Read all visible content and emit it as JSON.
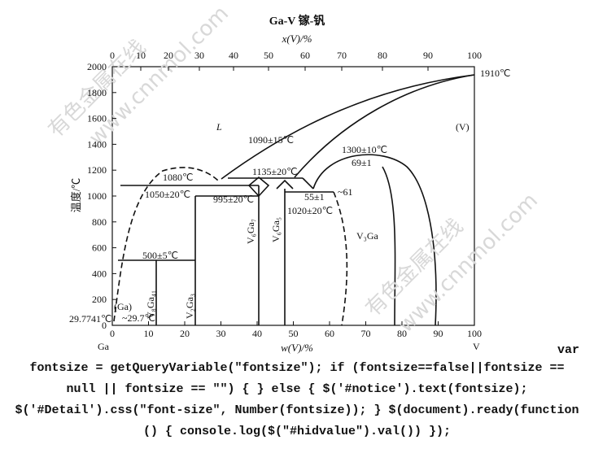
{
  "figure": {
    "title": "Ga-V  镓-钒",
    "top_axis": {
      "label": "x(V)/%",
      "ticks": [
        0,
        10,
        20,
        30,
        40,
        50,
        60,
        70,
        80,
        90,
        100
      ]
    },
    "left_axis": {
      "label": "温度/℃",
      "ticks": [
        0,
        200,
        400,
        600,
        800,
        1000,
        1200,
        1400,
        1600,
        1800,
        2000
      ]
    },
    "bottom_axis": {
      "label": "w(V)/%",
      "ticks": [
        0,
        10,
        20,
        30,
        40,
        50,
        60,
        70,
        80,
        90,
        100
      ]
    },
    "annotations": [
      "L",
      "(V)",
      "1910℃",
      "1090±15℃",
      "1300±10℃",
      "69±1",
      "1135±20℃",
      "1080℃",
      "1050±20℃",
      "995±20℃",
      "55±1",
      "~61",
      "1020±20℃",
      "V₆Ga₇",
      "V₆Ga₅",
      "V₃Ga",
      "500±5℃",
      "V₈Ga₄₁",
      "V₂Ga₃",
      "(Ga)",
      "~29.7℃",
      "29.7741℃",
      "Ga",
      "V"
    ],
    "watermarks": [
      "有色金属在线",
      "www.cnnmol.com",
      "有色金属在线",
      "www.cnnmol.com"
    ]
  },
  "code": {
    "lines": [
      "var",
      "fontsize = getQueryVariable(\"fontsize\"); if (fontsize==false||fontsize ==",
      "null || fontsize == \"\") { } else { $('#notice').text(fontsize);",
      "$('#Detail').css(\"font-size\", Number(fontsize)); } $(document).ready(function",
      "() { console.log($(\"#hidvalue\").val()) });"
    ]
  }
}
